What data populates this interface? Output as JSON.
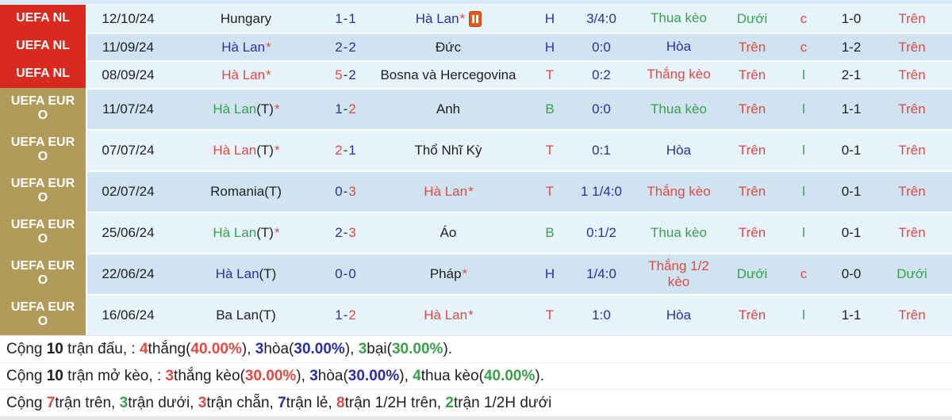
{
  "colors": {
    "competition_red_bg": "#d92a20",
    "competition_tan_bg": "#b29a5a",
    "row_light_bg": "#e7f3fb",
    "row_dark_bg": "#cfe3f1",
    "text_win_red": "#e04a42",
    "text_draw_blue": "#2b2fa6",
    "text_loss_green": "#3aa04a",
    "text_black": "#1f1f1f",
    "card_icon_orange": "#e8581b"
  },
  "table": {
    "rows": [
      {
        "comp": "UEFA NL",
        "comp_bg": "red",
        "date": "12/10/24",
        "home": {
          "name": "Hungary",
          "tag": "",
          "star": "",
          "color": "black"
        },
        "score": {
          "h": "1",
          "sep": "-",
          "a": "1",
          "h_color": "blue",
          "a_color": "blue"
        },
        "away": {
          "name": "Hà Lan",
          "tag": "",
          "star": "*",
          "color": "blue",
          "card": true
        },
        "htb": {
          "text": "H",
          "color": "blue"
        },
        "odds": "3/4:0",
        "bet": {
          "text": "Thua kèo",
          "color": "green"
        },
        "ou1": {
          "text": "Dưới",
          "color": "green"
        },
        "cl": {
          "text": "c",
          "color": "red"
        },
        "score2": "1-0",
        "ou2": {
          "text": "Trên",
          "color": "red"
        }
      },
      {
        "comp": "UEFA NL",
        "comp_bg": "red",
        "date": "11/09/24",
        "home": {
          "name": "Hà Lan",
          "tag": "",
          "star": "*",
          "color": "blue"
        },
        "score": {
          "h": "2",
          "sep": "-",
          "a": "2",
          "h_color": "blue",
          "a_color": "blue"
        },
        "away": {
          "name": "Đức",
          "tag": "",
          "star": "",
          "color": "black",
          "card": false
        },
        "htb": {
          "text": "H",
          "color": "blue"
        },
        "odds": "0:0",
        "bet": {
          "text": "Hòa",
          "color": "blue"
        },
        "ou1": {
          "text": "Trên",
          "color": "red"
        },
        "cl": {
          "text": "c",
          "color": "red"
        },
        "score2": "1-2",
        "ou2": {
          "text": "Trên",
          "color": "red"
        }
      },
      {
        "comp": "UEFA NL",
        "comp_bg": "red",
        "date": "08/09/24",
        "home": {
          "name": "Hà Lan",
          "tag": "",
          "star": "*",
          "color": "red"
        },
        "score": {
          "h": "5",
          "sep": "-",
          "a": "2",
          "h_color": "red",
          "a_color": "blue"
        },
        "away": {
          "name": "Bosna và Hercegovina",
          "tag": "",
          "star": "",
          "color": "black",
          "card": false
        },
        "htb": {
          "text": "T",
          "color": "red"
        },
        "odds": "0:2",
        "bet": {
          "text": "Thắng kèo",
          "color": "red"
        },
        "ou1": {
          "text": "Trên",
          "color": "red"
        },
        "cl": {
          "text": "l",
          "color": "green"
        },
        "score2": "2-1",
        "ou2": {
          "text": "Trên",
          "color": "red"
        }
      },
      {
        "comp": "UEFA EURO",
        "comp_bg": "tan",
        "date": "11/07/24",
        "home": {
          "name": "Hà Lan",
          "tag": "(T)",
          "star": "*",
          "color": "green"
        },
        "score": {
          "h": "1",
          "sep": "-",
          "a": "2",
          "h_color": "blue",
          "a_color": "red"
        },
        "away": {
          "name": "Anh",
          "tag": "",
          "star": "",
          "color": "black",
          "card": false
        },
        "htb": {
          "text": "B",
          "color": "green"
        },
        "odds": "0:0",
        "bet": {
          "text": "Thua kèo",
          "color": "green"
        },
        "ou1": {
          "text": "Trên",
          "color": "red"
        },
        "cl": {
          "text": "l",
          "color": "green"
        },
        "score2": "1-1",
        "ou2": {
          "text": "Trên",
          "color": "red"
        }
      },
      {
        "comp": "UEFA EURO",
        "comp_bg": "tan",
        "date": "07/07/24",
        "home": {
          "name": "Hà Lan",
          "tag": "(T)",
          "star": "*",
          "color": "red"
        },
        "score": {
          "h": "2",
          "sep": "-",
          "a": "1",
          "h_color": "red",
          "a_color": "blue"
        },
        "away": {
          "name": "Thổ Nhĩ Kỳ",
          "tag": "",
          "star": "",
          "color": "black",
          "card": false
        },
        "htb": {
          "text": "T",
          "color": "red"
        },
        "odds": "0:1",
        "bet": {
          "text": "Hòa",
          "color": "blue"
        },
        "ou1": {
          "text": "Trên",
          "color": "red"
        },
        "cl": {
          "text": "l",
          "color": "green"
        },
        "score2": "0-1",
        "ou2": {
          "text": "Trên",
          "color": "red"
        }
      },
      {
        "comp": "UEFA EURO",
        "comp_bg": "tan",
        "date": "02/07/24",
        "home": {
          "name": "Romania",
          "tag": "(T)",
          "star": "",
          "color": "black"
        },
        "score": {
          "h": "0",
          "sep": "-",
          "a": "3",
          "h_color": "blue",
          "a_color": "red"
        },
        "away": {
          "name": "Hà Lan",
          "tag": "",
          "star": "*",
          "color": "red",
          "card": false
        },
        "htb": {
          "text": "T",
          "color": "red"
        },
        "odds": "1 1/4:0",
        "bet": {
          "text": "Thắng kèo",
          "color": "red"
        },
        "ou1": {
          "text": "Trên",
          "color": "red"
        },
        "cl": {
          "text": "l",
          "color": "green"
        },
        "score2": "0-1",
        "ou2": {
          "text": "Trên",
          "color": "red"
        }
      },
      {
        "comp": "UEFA EURO",
        "comp_bg": "tan",
        "date": "25/06/24",
        "home": {
          "name": "Hà Lan",
          "tag": "(T)",
          "star": "*",
          "color": "green"
        },
        "score": {
          "h": "2",
          "sep": "-",
          "a": "3",
          "h_color": "blue",
          "a_color": "red"
        },
        "away": {
          "name": "Áo",
          "tag": "",
          "star": "",
          "color": "black",
          "card": false
        },
        "htb": {
          "text": "B",
          "color": "green"
        },
        "odds": "0:1/2",
        "bet": {
          "text": "Thua kèo",
          "color": "green"
        },
        "ou1": {
          "text": "Trên",
          "color": "red"
        },
        "cl": {
          "text": "l",
          "color": "green"
        },
        "score2": "0-1",
        "ou2": {
          "text": "Trên",
          "color": "red"
        }
      },
      {
        "comp": "UEFA EURO",
        "comp_bg": "tan",
        "date": "22/06/24",
        "home": {
          "name": "Hà Lan",
          "tag": "(T)",
          "star": "",
          "color": "blue"
        },
        "score": {
          "h": "0",
          "sep": "-",
          "a": "0",
          "h_color": "blue",
          "a_color": "blue"
        },
        "away": {
          "name": "Pháp",
          "tag": "",
          "star": "*",
          "color": "black",
          "card": false
        },
        "htb": {
          "text": "H",
          "color": "blue"
        },
        "odds": "1/4:0",
        "bet": {
          "text": "Thắng 1/2 kèo",
          "color": "red"
        },
        "ou1": {
          "text": "Dưới",
          "color": "green"
        },
        "cl": {
          "text": "c",
          "color": "red"
        },
        "score2": "0-0",
        "ou2": {
          "text": "Dưới",
          "color": "green"
        }
      },
      {
        "comp": "UEFA EURO",
        "comp_bg": "tan",
        "date": "16/06/24",
        "home": {
          "name": "Ba Lan",
          "tag": "(T)",
          "star": "",
          "color": "black"
        },
        "score": {
          "h": "1",
          "sep": "-",
          "a": "2",
          "h_color": "blue",
          "a_color": "red"
        },
        "away": {
          "name": "Hà Lan",
          "tag": "",
          "star": "*",
          "color": "red",
          "card": false
        },
        "htb": {
          "text": "T",
          "color": "red"
        },
        "odds": "1:0",
        "bet": {
          "text": "Hòa",
          "color": "blue"
        },
        "ou1": {
          "text": "Trên",
          "color": "red"
        },
        "cl": {
          "text": "l",
          "color": "green"
        },
        "score2": "1-1",
        "ou2": {
          "text": "Trên",
          "color": "red"
        }
      }
    ]
  },
  "summary": [
    {
      "segments": [
        {
          "t": "Cộng ",
          "c": "black"
        },
        {
          "t": "10",
          "c": "black",
          "b": true
        },
        {
          "t": " trận đấu, : ",
          "c": "black"
        },
        {
          "t": "4",
          "c": "red",
          "b": true
        },
        {
          "t": "thắng(",
          "c": "black"
        },
        {
          "t": "40.00%",
          "c": "red",
          "b": true
        },
        {
          "t": "), ",
          "c": "black"
        },
        {
          "t": "3",
          "c": "blue",
          "b": true
        },
        {
          "t": "hòa(",
          "c": "black"
        },
        {
          "t": "30.00%",
          "c": "blue",
          "b": true
        },
        {
          "t": "), ",
          "c": "black"
        },
        {
          "t": "3",
          "c": "green",
          "b": true
        },
        {
          "t": "bại(",
          "c": "black"
        },
        {
          "t": "30.00%",
          "c": "green",
          "b": true
        },
        {
          "t": ").",
          "c": "black"
        }
      ]
    },
    {
      "segments": [
        {
          "t": "Cộng ",
          "c": "black"
        },
        {
          "t": "10",
          "c": "black",
          "b": true
        },
        {
          "t": " trận mở kèo, : ",
          "c": "black"
        },
        {
          "t": "3",
          "c": "red",
          "b": true
        },
        {
          "t": "thắng kèo(",
          "c": "black"
        },
        {
          "t": "30.00%",
          "c": "red",
          "b": true
        },
        {
          "t": "), ",
          "c": "black"
        },
        {
          "t": "3",
          "c": "blue",
          "b": true
        },
        {
          "t": "hòa(",
          "c": "black"
        },
        {
          "t": "30.00%",
          "c": "blue",
          "b": true
        },
        {
          "t": "), ",
          "c": "black"
        },
        {
          "t": "4",
          "c": "green",
          "b": true
        },
        {
          "t": "thua kèo(",
          "c": "black"
        },
        {
          "t": "40.00%",
          "c": "green",
          "b": true
        },
        {
          "t": ").",
          "c": "black"
        }
      ]
    },
    {
      "segments": [
        {
          "t": "Cộng ",
          "c": "black"
        },
        {
          "t": "7",
          "c": "red",
          "b": true
        },
        {
          "t": "trận trên, ",
          "c": "black"
        },
        {
          "t": "3",
          "c": "green",
          "b": true
        },
        {
          "t": "trận dưới, ",
          "c": "black"
        },
        {
          "t": "3",
          "c": "red",
          "b": true
        },
        {
          "t": "trận chẵn, ",
          "c": "black"
        },
        {
          "t": "7",
          "c": "blue",
          "b": true
        },
        {
          "t": "trận lẻ, ",
          "c": "black"
        },
        {
          "t": "8",
          "c": "red",
          "b": true
        },
        {
          "t": "trận 1/2H trên, ",
          "c": "black"
        },
        {
          "t": "2",
          "c": "green",
          "b": true
        },
        {
          "t": "trận 1/2H dưới",
          "c": "black"
        }
      ]
    }
  ]
}
